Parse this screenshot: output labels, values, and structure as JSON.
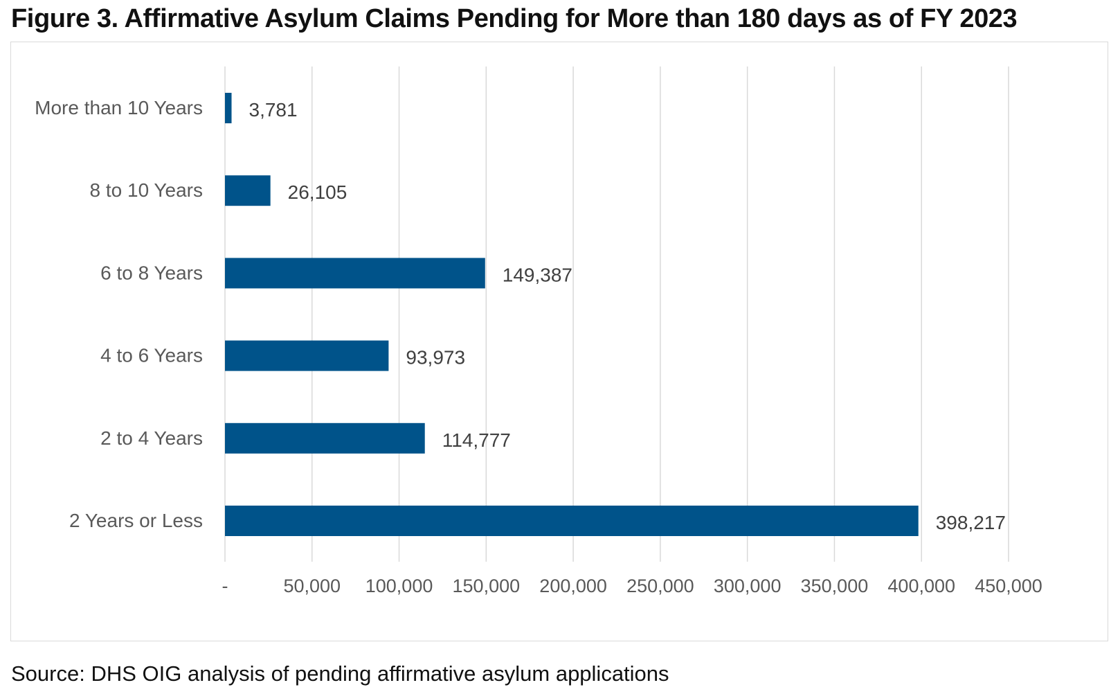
{
  "figure": {
    "title": "Figure 3. Affirmative Asylum Claims Pending for More than 180 days as of FY 2023",
    "source": "Source: DHS OIG analysis of pending affirmative asylum applications"
  },
  "chart_data": {
    "type": "bar",
    "orientation": "horizontal",
    "title": "Figure 3. Affirmative Asylum Claims Pending for More than 180 days as of FY 2023",
    "xlabel": "",
    "ylabel": "",
    "categories": [
      "More than 10 Years",
      "8 to 10 Years",
      "6 to 8 Years",
      "4 to 6 Years",
      "2 to 4 Years",
      "2 Years or Less"
    ],
    "values": [
      3781,
      26105,
      149387,
      93973,
      114777,
      398217
    ],
    "data_labels": [
      "3,781",
      "26,105",
      "149,387",
      "93,973",
      "114,777",
      "398,217"
    ],
    "xlim": [
      0,
      450000
    ],
    "x_ticks": [
      0,
      50000,
      100000,
      150000,
      200000,
      250000,
      300000,
      350000,
      400000,
      450000
    ],
    "x_tick_labels": [
      "-",
      "50,000",
      "100,000",
      "150,000",
      "200,000",
      "250,000",
      "300,000",
      "350,000",
      "400,000",
      "450,000"
    ],
    "grid": "vertical",
    "legend": "none",
    "bar_color": "#00538A",
    "grid_color": "#d9d9d9"
  }
}
